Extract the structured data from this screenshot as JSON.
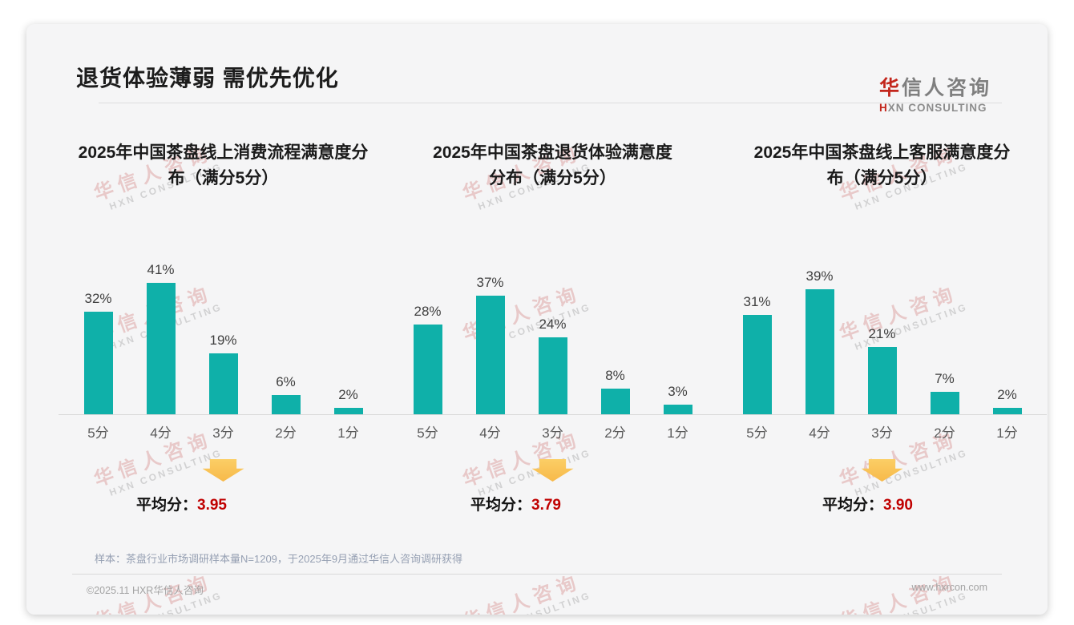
{
  "header": {
    "title": "退货体验薄弱 需优先优化"
  },
  "logo": {
    "cn_accent": "华",
    "cn_rest": "信人咨询",
    "en_accent": "H",
    "en_rest": "XN CONSULTING"
  },
  "watermark": {
    "line1": "华信人咨询",
    "line2": "HXN CONSULTING"
  },
  "average_label": "平均分：",
  "chart_data": [
    {
      "type": "bar",
      "title": "2025年中国茶盘线上消费流程满意度分布（满分5分）",
      "title_lines": [
        "2025年中国茶盘线上消费流程满意度分",
        "布（满分5分）"
      ],
      "categories": [
        "5分",
        "4分",
        "3分",
        "2分",
        "1分"
      ],
      "values": [
        32,
        41,
        19,
        6,
        2
      ],
      "unit": "%",
      "average": "3.95",
      "ylim": [
        0,
        45
      ],
      "grid": false,
      "legend": "none"
    },
    {
      "type": "bar",
      "title": "2025年中国茶盘退货体验满意度分布（满分5分）",
      "title_lines": [
        "2025年中国茶盘退货体验满意度",
        "分布（满分5分）"
      ],
      "categories": [
        "5分",
        "4分",
        "3分",
        "2分",
        "1分"
      ],
      "values": [
        28,
        37,
        24,
        8,
        3
      ],
      "unit": "%",
      "average": "3.79",
      "ylim": [
        0,
        45
      ],
      "grid": false,
      "legend": "none"
    },
    {
      "type": "bar",
      "title": "2025年中国茶盘线上客服满意度分布（满分5分）",
      "title_lines": [
        "2025年中国茶盘线上客服满意度分",
        "布（满分5分）"
      ],
      "categories": [
        "5分",
        "4分",
        "3分",
        "2分",
        "1分"
      ],
      "values": [
        31,
        39,
        21,
        7,
        2
      ],
      "unit": "%",
      "average": "3.90",
      "ylim": [
        0,
        45
      ],
      "grid": false,
      "legend": "none"
    }
  ],
  "footer": {
    "sample_note": "样本：茶盘行业市场调研样本量N=1209，于2025年9月通过华信人咨询调研获得",
    "copyright": "©2025.11 HXR华信人咨询",
    "website": "www.hxrcon.com"
  },
  "colors": {
    "bar_teal": "#0FB0A9",
    "logo_red": "#C3261C",
    "average_value_red": "#C00000",
    "arrow_yellow": "#F8C355",
    "card_background": "#F5F5F6",
    "watermark_pink": "#C65655"
  }
}
